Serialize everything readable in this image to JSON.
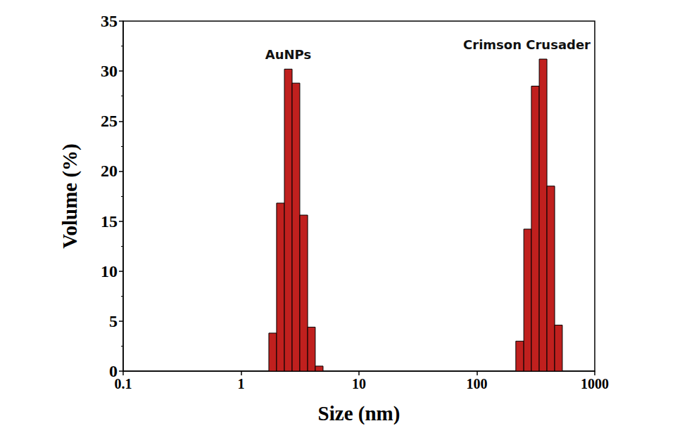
{
  "chart_data": {
    "type": "histogram",
    "x_label": "Size (nm)",
    "y_label": "Volume (%)",
    "log": "x",
    "xlim": [
      0.1,
      1000
    ],
    "xticks": [
      0.1,
      1,
      10,
      100,
      1000
    ],
    "ylim": [
      0,
      35
    ],
    "yticks": [
      0,
      5,
      10,
      15,
      20,
      25,
      30,
      35
    ],
    "grid": false,
    "series": [
      {
        "name": "AuNPs",
        "color": "#c0201e",
        "bins": [
          1.72,
          2.0,
          2.33,
          2.71,
          3.15,
          3.67,
          4.26,
          4.96
        ],
        "values": [
          3.8,
          16.8,
          30.2,
          28.8,
          15.6,
          4.4,
          0.5
        ]
      },
      {
        "name": "Crimson Crusader",
        "color": "#c0201e",
        "bins": [
          214,
          250,
          290,
          338,
          393,
          457,
          531
        ],
        "values": [
          3.0,
          14.2,
          28.5,
          31.2,
          18.5,
          4.6
        ]
      }
    ]
  }
}
